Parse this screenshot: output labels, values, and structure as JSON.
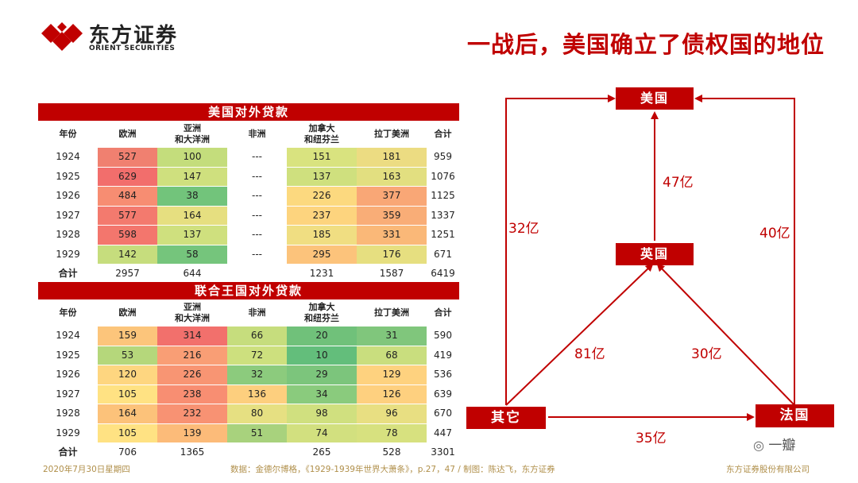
{
  "brand": {
    "name_cn": "东方证券",
    "name_en": "ORIENT SECURITIES"
  },
  "title": "一战后，美国确立了债权国的地位",
  "us_table": {
    "title": "美国对外贷款",
    "columns": [
      "年份",
      "欧洲",
      "亚洲\n和大洋洲",
      "非洲",
      "加拿大\n和纽芬兰",
      "拉丁美洲",
      "合计"
    ],
    "rows": [
      [
        "1924",
        "527",
        "100",
        "---",
        "151",
        "181",
        "959"
      ],
      [
        "1925",
        "629",
        "147",
        "---",
        "137",
        "163",
        "1076"
      ],
      [
        "1926",
        "484",
        "38",
        "---",
        "226",
        "377",
        "1125"
      ],
      [
        "1927",
        "577",
        "164",
        "---",
        "237",
        "359",
        "1337"
      ],
      [
        "1928",
        "598",
        "137",
        "---",
        "185",
        "331",
        "1251"
      ],
      [
        "1929",
        "142",
        "58",
        "---",
        "295",
        "176",
        "671"
      ]
    ],
    "total": [
      "合计",
      "2957",
      "644",
      "",
      "1231",
      "1587",
      "6419"
    ],
    "colors": [
      [
        "#ffffff",
        "#f08070",
        "#c4dd7c",
        "#ffffff",
        "#d9e37f",
        "#ecdc82",
        "#ffffff"
      ],
      [
        "#ffffff",
        "#f26e6c",
        "#cfe07e",
        "#ffffff",
        "#cfe07e",
        "#e2df80",
        "#ffffff"
      ],
      [
        "#ffffff",
        "#f78d72",
        "#72c47b",
        "#ffffff",
        "#fcd97f",
        "#f9a776",
        "#ffffff"
      ],
      [
        "#ffffff",
        "#f37a6e",
        "#e6df80",
        "#ffffff",
        "#fdd47e",
        "#f9ad77",
        "#ffffff"
      ],
      [
        "#ffffff",
        "#f3766d",
        "#cfe07e",
        "#ffffff",
        "#f0de82",
        "#fab878",
        "#ffffff"
      ],
      [
        "#ffffff",
        "#c6dd7d",
        "#75c57c",
        "#ffffff",
        "#fcc37b",
        "#e6df80",
        "#ffffff"
      ]
    ]
  },
  "uk_table": {
    "title": "联合王国对外贷款",
    "columns": [
      "年份",
      "欧洲",
      "亚洲\n和大洋洲",
      "非洲",
      "加拿大\n和纽芬兰",
      "拉丁美洲",
      "合计"
    ],
    "rows": [
      [
        "1924",
        "159",
        "314",
        "66",
        "20",
        "31",
        "590"
      ],
      [
        "1925",
        "53",
        "216",
        "72",
        "10",
        "68",
        "419"
      ],
      [
        "1926",
        "120",
        "226",
        "32",
        "29",
        "129",
        "536"
      ],
      [
        "1927",
        "105",
        "238",
        "136",
        "34",
        "126",
        "639"
      ],
      [
        "1928",
        "164",
        "232",
        "80",
        "98",
        "96",
        "670"
      ],
      [
        "1929",
        "105",
        "139",
        "51",
        "74",
        "78",
        "447"
      ]
    ],
    "total": [
      "合计",
      "706",
      "1365",
      "",
      "265",
      "528",
      "3301"
    ],
    "colors": [
      [
        "#ffffff",
        "#fcc57b",
        "#f2706c",
        "#c6dd7d",
        "#70c17a",
        "#80c67c",
        "#ffffff"
      ],
      [
        "#ffffff",
        "#b5d77b",
        "#f99e75",
        "#cde07e",
        "#63be7b",
        "#c9de7e",
        "#ffffff"
      ],
      [
        "#ffffff",
        "#fed680",
        "#f89573",
        "#8ccb7d",
        "#7cc57c",
        "#fed27f",
        "#ffffff"
      ],
      [
        "#ffffff",
        "#ffe283",
        "#f88e72",
        "#fdcf7e",
        "#8acb7d",
        "#fed07f",
        "#ffffff"
      ],
      [
        "#ffffff",
        "#fcc27a",
        "#f89273",
        "#e6e082",
        "#d0e07f",
        "#e8df82",
        "#ffffff"
      ],
      [
        "#ffffff",
        "#ffe283",
        "#fcbb79",
        "#a8d27d",
        "#d2e07f",
        "#d7e17f",
        "#ffffff"
      ]
    ]
  },
  "diagram": {
    "nodes": {
      "usa": "美国",
      "uk": "英国",
      "other": "其它",
      "france": "法国"
    },
    "flows": {
      "other_to_usa": "32亿",
      "uk_to_usa": "47亿",
      "france_to_usa": "40亿",
      "other_to_uk": "81亿",
      "france_to_uk": "30亿",
      "other_to_france": "35亿"
    },
    "color": "#c00000"
  },
  "footer": {
    "date": "2020年7月30日星期四",
    "source": "数据：金德尔博格，《1929-1939年世界大萧条》，p.27，47 / 制图：陈达飞，东方证券",
    "company": "东方证券股份有限公司"
  },
  "watermark": "一瓣"
}
